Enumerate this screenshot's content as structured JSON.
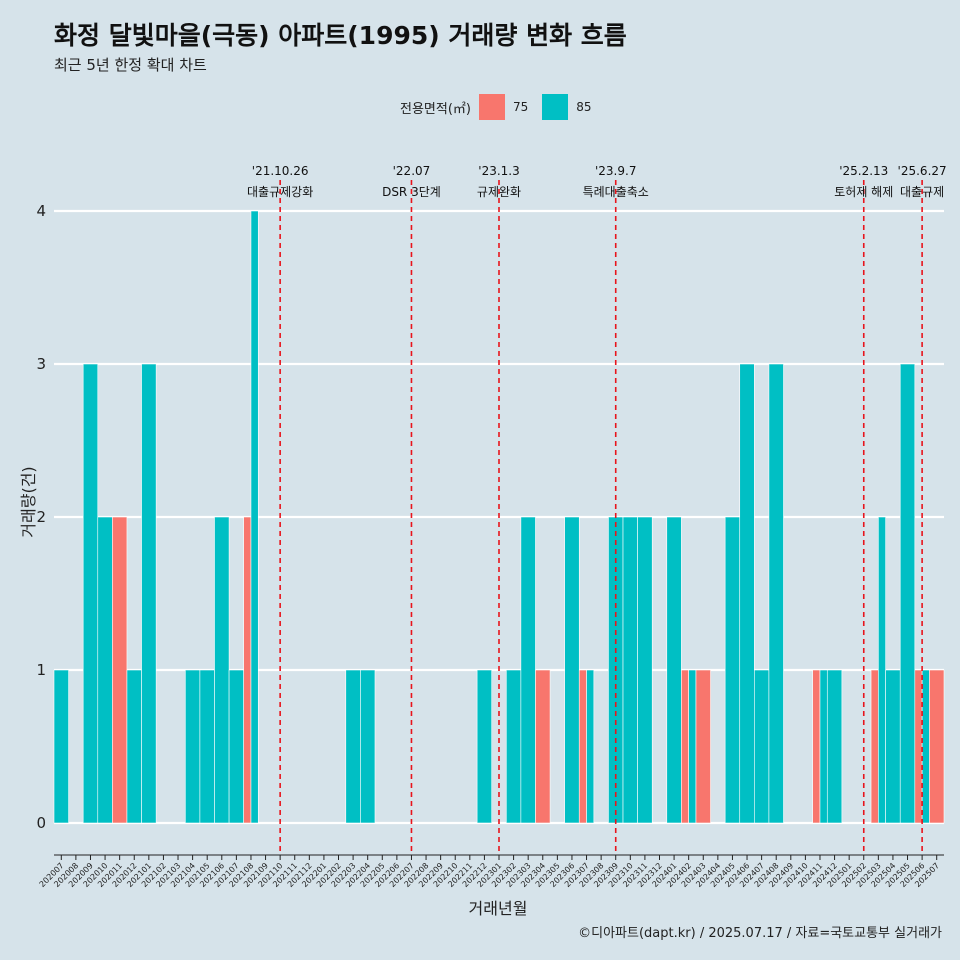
{
  "title": "화정 달빛마을(극동) 아파트(1995) 거래량 변화 흐름",
  "subtitle": "최근 5년 한정 확대 차트",
  "caption": "©디아파트(dapt.kr) / 2025.07.17 / 자료=국토교통부 실거래가",
  "colors": {
    "s75": "#f8766d",
    "s85": "#00bfc4",
    "grid": "#ffffff",
    "event_line": "#e8141c",
    "background": "#d6e3ea"
  },
  "chart_data": {
    "type": "bar",
    "xlabel": "거래년월",
    "ylabel": "거래량(건)",
    "ylim": [
      0,
      4
    ],
    "yticks": [
      0,
      1,
      2,
      3,
      4
    ],
    "legend_title": "전용면적(㎡)",
    "legend_position": "top",
    "grid": true,
    "categories": [
      "202007",
      "202008",
      "202009",
      "202010",
      "202011",
      "202012",
      "202101",
      "202102",
      "202103",
      "202104",
      "202105",
      "202106",
      "202107",
      "202108",
      "202109",
      "202110",
      "202111",
      "202112",
      "202201",
      "202202",
      "202203",
      "202204",
      "202205",
      "202206",
      "202207",
      "202208",
      "202209",
      "202210",
      "202211",
      "202212",
      "202301",
      "202302",
      "202303",
      "202304",
      "202305",
      "202306",
      "202307",
      "202308",
      "202309",
      "202310",
      "202311",
      "202312",
      "202401",
      "202402",
      "202403",
      "202404",
      "202405",
      "202406",
      "202407",
      "202408",
      "202409",
      "202410",
      "202411",
      "202412",
      "202501",
      "202502",
      "202503",
      "202504",
      "202505",
      "202506",
      "202507"
    ],
    "series": [
      {
        "name": "75",
        "values": [
          0,
          0,
          0,
          0,
          2,
          0,
          0,
          0,
          0,
          0,
          0,
          0,
          0,
          2,
          0,
          0,
          0,
          0,
          0,
          0,
          0,
          0,
          0,
          0,
          0,
          0,
          0,
          0,
          0,
          0,
          0,
          0,
          0,
          1,
          0,
          0,
          1,
          0,
          0,
          0,
          0,
          0,
          0,
          1,
          1,
          0,
          0,
          0,
          0,
          0,
          0,
          0,
          1,
          0,
          0,
          0,
          1,
          0,
          0,
          1,
          1
        ]
      },
      {
        "name": "85",
        "values": [
          1,
          0,
          3,
          2,
          0,
          1,
          3,
          0,
          0,
          1,
          1,
          2,
          1,
          4,
          0,
          0,
          0,
          0,
          0,
          0,
          1,
          1,
          0,
          0,
          0,
          0,
          0,
          0,
          0,
          1,
          0,
          1,
          2,
          0,
          0,
          2,
          1,
          0,
          2,
          2,
          2,
          0,
          2,
          1,
          0,
          0,
          2,
          3,
          1,
          3,
          0,
          0,
          1,
          1,
          0,
          0,
          2,
          1,
          3,
          1,
          0
        ]
      }
    ],
    "events": [
      {
        "date": "'21.10.26",
        "label": "대출규제강화",
        "after_category": "202110"
      },
      {
        "date": "'22.07",
        "label": "DSR 3단계",
        "after_category": "202207"
      },
      {
        "date": "'23.1.3",
        "label": "규제완화",
        "after_category": "202301"
      },
      {
        "date": "'23.9.7",
        "label": "특례대출축소",
        "after_category": "202309"
      },
      {
        "date": "'25.2.13",
        "label": "토허제 해제",
        "after_category": "202502"
      },
      {
        "date": "'25.6.27",
        "label": "대출규제",
        "after_category": "202506"
      }
    ]
  }
}
